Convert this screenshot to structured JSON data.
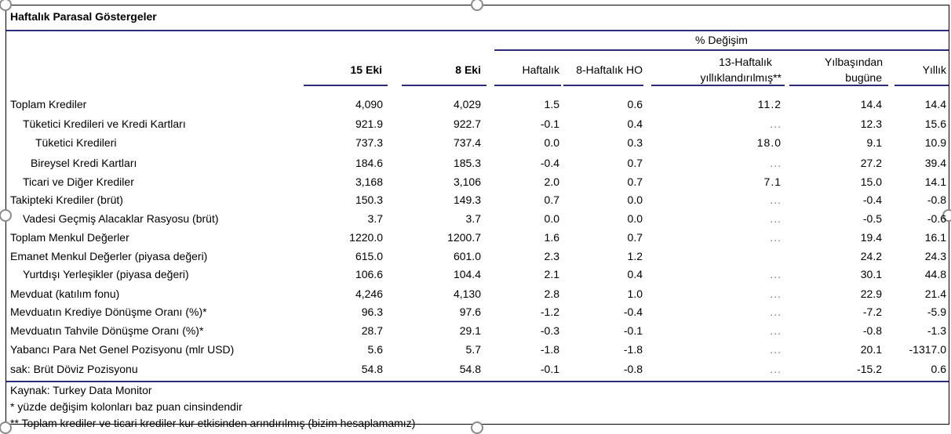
{
  "title": "Haftalık Parasal Göstergeler",
  "header": {
    "group": "% Değişim",
    "col1": "15 Eki",
    "col2": "8 Eki",
    "col3": "Haftalık",
    "col4": "8-Haftalık HO",
    "col5_line1": "13-Haftalık",
    "col5_line2": "yıllıklandırılmış**",
    "col6_line1": "Yılbaşından",
    "col6_line2": "bugüne",
    "col7": "Yıllık"
  },
  "rows": [
    {
      "label": "Toplam Krediler",
      "c1": "4,090",
      "c2": "4,029",
      "c3": "1.5",
      "c4": "0.6",
      "c5": "11.2",
      "c6": "14.4",
      "c7": "14.4"
    },
    {
      "label": "Tüketici Kredileri ve Kredi Kartları",
      "c1": "921.9",
      "c2": "922.7",
      "c3": "-0.1",
      "c4": "0.4",
      "c5": "...",
      "c6": "12.3",
      "c7": "15.6"
    },
    {
      "label": "Tüketici Kredileri",
      "c1": "737.3",
      "c2": "737.4",
      "c3": "0.0",
      "c4": "0.3",
      "c5": "18.0",
      "c6": "9.1",
      "c7": "10.9"
    },
    {
      "label": "Bireysel Kredi Kartları",
      "c1": "184.6",
      "c2": "185.3",
      "c3": "-0.4",
      "c4": "0.7",
      "c5": "...",
      "c6": "27.2",
      "c7": "39.4"
    },
    {
      "label": "Ticari ve Diğer Krediler",
      "c1": "3,168",
      "c2": "3,106",
      "c3": "2.0",
      "c4": "0.7",
      "c5": "7.1",
      "c6": "15.0",
      "c7": "14.1"
    },
    {
      "label": "Takipteki Krediler (brüt)",
      "c1": "150.3",
      "c2": "149.3",
      "c3": "0.7",
      "c4": "0.0",
      "c5": "...",
      "c6": "-0.4",
      "c7": "-0.8"
    },
    {
      "label": "Vadesi Geçmiş Alacaklar Rasyosu (brüt)",
      "c1": "3.7",
      "c2": "3.7",
      "c3": "0.0",
      "c4": "0.0",
      "c5": "...",
      "c6": "-0.5",
      "c7": "-0.6"
    },
    {
      "label": "Toplam Menkul Değerler",
      "c1": "1220.0",
      "c2": "1200.7",
      "c3": "1.6",
      "c4": "0.7",
      "c5": "...",
      "c6": "19.4",
      "c7": "16.1"
    },
    {
      "label": "Emanet Menkul Değerler (piyasa değeri)",
      "c1": "615.0",
      "c2": "601.0",
      "c3": "2.3",
      "c4": "1.2",
      "c5": "",
      "c6": "24.2",
      "c7": "24.3"
    },
    {
      "label": "Yurtdışı Yerleşikler (piyasa değeri)",
      "c1": "106.6",
      "c2": "104.4",
      "c3": "2.1",
      "c4": "0.4",
      "c5": "...",
      "c6": "30.1",
      "c7": "44.8"
    },
    {
      "label": "Mevduat (katılım fonu)",
      "c1": "4,246",
      "c2": "4,130",
      "c3": "2.8",
      "c4": "1.0",
      "c5": "...",
      "c6": "22.9",
      "c7": "21.4"
    },
    {
      "label": "Mevduatın Krediye Dönüşme Oranı (%)*",
      "c1": "96.3",
      "c2": "97.6",
      "c3": "-1.2",
      "c4": "-0.4",
      "c5": "...",
      "c6": "-7.2",
      "c7": "-5.9"
    },
    {
      "label": "Mevduatın Tahvile Dönüşme Oranı (%)*",
      "c1": "28.7",
      "c2": "29.1",
      "c3": "-0.3",
      "c4": "-0.1",
      "c5": "...",
      "c6": "-0.8",
      "c7": "-1.3"
    },
    {
      "label": "Yabancı Para Net Genel Pozisyonu (mlr USD)",
      "c1": "5.6",
      "c2": "5.7",
      "c3": "-1.8",
      "c4": "-1.8",
      "c5": "...",
      "c6": "20.1",
      "c7": "-1317.0"
    },
    {
      "label": "sak: Brüt Döviz Pozisyonu",
      "c1": "54.8",
      "c2": "54.8",
      "c3": "-0.1",
      "c4": "-0.8",
      "c5": "...",
      "c6": "-15.2",
      "c7": "0.6"
    }
  ],
  "footnotes": [
    "Kaynak: Turkey Data Monitor",
    "* yüzde değişim kolonları baz puan cinsindendir",
    "** Toplam krediler ve ticari krediler kur etkisinden arındırılmış (bizim hesaplamamız)"
  ]
}
